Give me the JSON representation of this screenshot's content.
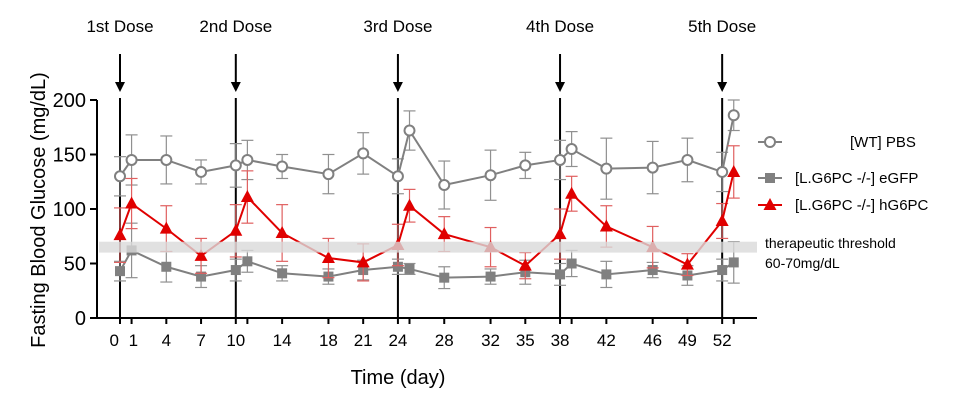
{
  "chart_data": {
    "type": "line",
    "xlabel": "Time (day)",
    "ylabel": "Fasting Blood Glucose (mg/dL)",
    "ylim": [
      0,
      200
    ],
    "yticks": [
      0,
      50,
      100,
      150,
      200
    ],
    "xticks": [
      0,
      1,
      4,
      7,
      10,
      14,
      18,
      21,
      24,
      28,
      32,
      35,
      38,
      42,
      46,
      49,
      52
    ],
    "xtick_labels": [
      "0",
      "1",
      "4",
      "7",
      "10",
      "14",
      "18",
      "21",
      "24",
      "28",
      "32",
      "35",
      "38",
      "42",
      "46",
      "49",
      "52"
    ],
    "x": [
      0,
      1,
      4,
      7,
      10,
      11,
      14,
      18,
      21,
      24,
      25,
      28,
      32,
      35,
      38,
      39,
      42,
      46,
      49,
      52,
      53
    ],
    "series": [
      {
        "name": "[WT] PBS",
        "color": "#808080",
        "marker": "open-circle",
        "values": [
          130,
          145,
          145,
          134,
          140,
          145,
          139,
          132,
          151,
          130,
          172,
          122,
          131,
          140,
          145,
          155,
          137,
          138,
          145,
          134,
          186
        ],
        "errors": [
          18,
          23,
          22,
          11,
          20,
          18,
          11,
          18,
          19,
          16,
          18,
          22,
          23,
          12,
          18,
          16,
          28,
          24,
          20,
          18,
          14
        ]
      },
      {
        "name": "[L.G6PC -/-] eGFP",
        "color": "#808080",
        "marker": "square",
        "values": [
          43,
          62,
          47,
          38,
          44,
          52,
          41,
          38,
          44,
          47,
          45,
          37,
          38,
          42,
          40,
          50,
          40,
          44,
          39,
          44,
          51
        ],
        "errors": [
          9,
          25,
          14,
          10,
          10,
          10,
          7,
          7,
          9,
          7,
          5,
          10,
          7,
          11,
          10,
          12,
          12,
          7,
          9,
          10,
          19
        ]
      },
      {
        "name": "[L.G6PC -/-] hG6PC",
        "color": "#e00000",
        "marker": "triangle",
        "values": [
          76,
          105,
          82,
          57,
          80,
          111,
          78,
          55,
          51,
          67,
          103,
          77,
          65,
          48,
          77,
          114,
          84,
          65,
          49,
          89,
          134
        ],
        "errors": [
          25,
          23,
          21,
          16,
          24,
          24,
          26,
          18,
          17,
          19,
          15,
          16,
          18,
          12,
          23,
          16,
          19,
          19,
          10,
          16,
          24
        ]
      }
    ],
    "legend": "right",
    "doses": [
      {
        "label": "1st Dose",
        "day": 0
      },
      {
        "label": "2nd Dose",
        "day": 10
      },
      {
        "label": "3rd Dose",
        "day": 24
      },
      {
        "label": "4th Dose",
        "day": 38
      },
      {
        "label": "5th Dose",
        "day": 52
      }
    ],
    "threshold": {
      "range": [
        60,
        70
      ],
      "label_line1": "therapeutic threshold",
      "label_line2": "60-70mg/dL",
      "color": "#d9d9d9"
    },
    "grid": false
  }
}
